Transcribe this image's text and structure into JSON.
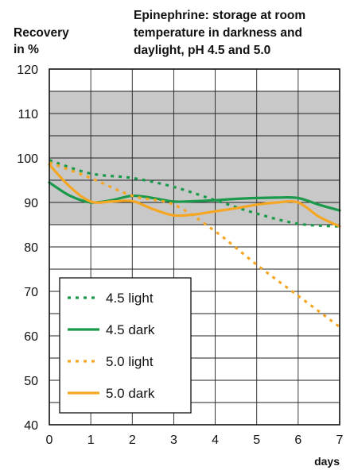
{
  "chart_data": {
    "type": "line",
    "title": [
      "Epinephrine: storage at room",
      "temperature in darkness and",
      "daylight, pH 4.5 and 5.0"
    ],
    "ylabel": [
      "Recovery",
      "in %"
    ],
    "xlabel": "days",
    "xlim": [
      0,
      7
    ],
    "ylim": [
      40,
      120
    ],
    "xticks": [
      0,
      1,
      2,
      3,
      4,
      5,
      6,
      7
    ],
    "yticks": [
      40,
      50,
      60,
      70,
      80,
      90,
      100,
      110,
      120
    ],
    "x_gridlines": [
      0,
      1,
      2,
      3,
      4,
      5,
      6,
      7
    ],
    "y_gridlines": [
      40,
      45,
      50,
      55,
      60,
      65,
      70,
      75,
      80,
      85,
      90,
      95,
      100,
      105,
      110,
      115,
      120
    ],
    "shaded_band": {
      "from": 85,
      "to": 115,
      "color": "#c8c8c8"
    },
    "grid": true,
    "legend": {
      "placement": "bottom-left"
    },
    "series": [
      {
        "name": "4.5 light",
        "color": "#1a9a4a",
        "style": "dotted",
        "x": [
          0,
          1,
          2,
          3,
          4,
          5,
          6,
          7
        ],
        "y": [
          99.5,
          96.5,
          95.5,
          93.5,
          90.5,
          87.5,
          85.2,
          84.6
        ]
      },
      {
        "name": "4.5 dark",
        "color": "#1a9a4a",
        "style": "solid",
        "x": [
          0,
          0.5,
          1,
          1.5,
          2,
          2.5,
          3,
          3.5,
          4,
          4.5,
          5,
          5.5,
          6,
          6.5,
          7
        ],
        "y": [
          94.5,
          91.5,
          90,
          90.5,
          91.5,
          91,
          90.2,
          90.3,
          90.5,
          90.8,
          91,
          91.1,
          91,
          89.5,
          88.2
        ]
      },
      {
        "name": "5.0 light",
        "color": "#f5a623",
        "style": "dotted",
        "x": [
          0,
          1,
          2,
          3,
          4,
          5,
          6,
          7
        ],
        "y": [
          99,
          95.5,
          91.5,
          89.5,
          83.5,
          76,
          69,
          62
        ]
      },
      {
        "name": "5.0 dark",
        "color": "#f5a623",
        "style": "solid",
        "x": [
          0,
          0.5,
          1,
          1.5,
          2,
          2.5,
          3,
          3.5,
          4,
          4.5,
          5,
          5.5,
          6,
          6.5,
          7
        ],
        "y": [
          98.5,
          93.5,
          90.2,
          90.2,
          90.3,
          88.5,
          87.1,
          87.3,
          88,
          88.7,
          89.5,
          90,
          90,
          86.8,
          84.6
        ]
      }
    ]
  }
}
